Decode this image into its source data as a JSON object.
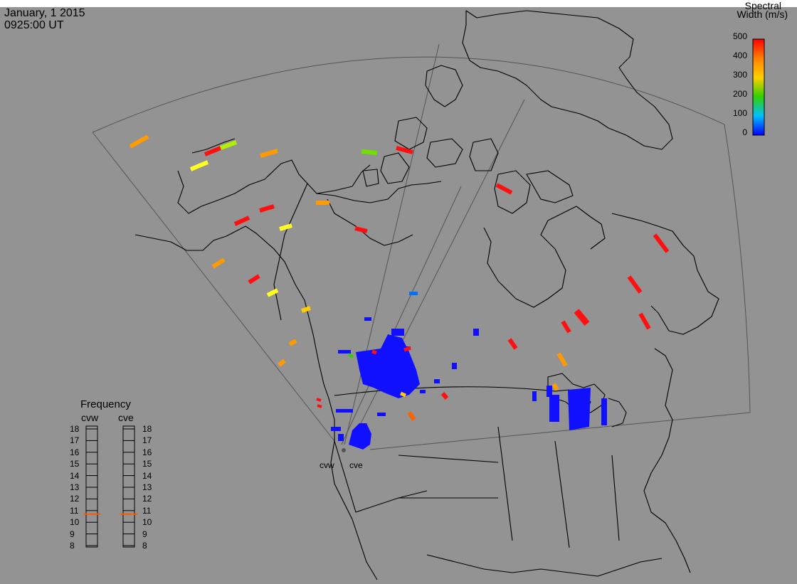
{
  "header": {
    "date": "January, 1 2015",
    "time": "0925:00 UT"
  },
  "colorbar": {
    "title_line1": "Spectral",
    "title_line2": "Width (m/s)",
    "labels": [
      "500",
      "400",
      "300",
      "200",
      "100",
      "0"
    ],
    "colors": [
      "#ff0000",
      "#ff8000",
      "#ffd000",
      "#30d000",
      "#00c0ff",
      "#0000ff"
    ]
  },
  "frequency": {
    "title": "Frequency",
    "radars": [
      "cvw",
      "cve"
    ],
    "ticks": [
      "18",
      "17",
      "16",
      "15",
      "14",
      "13",
      "12",
      "11",
      "10",
      "9",
      "8"
    ],
    "cvw_value": 10.7,
    "cve_value": 10.7
  },
  "stations": {
    "west": "cvw",
    "east": "cve"
  },
  "colors": {
    "background": "#939393",
    "coast": "#000000",
    "fov": "#555555",
    "scatter": "#1010ff"
  }
}
